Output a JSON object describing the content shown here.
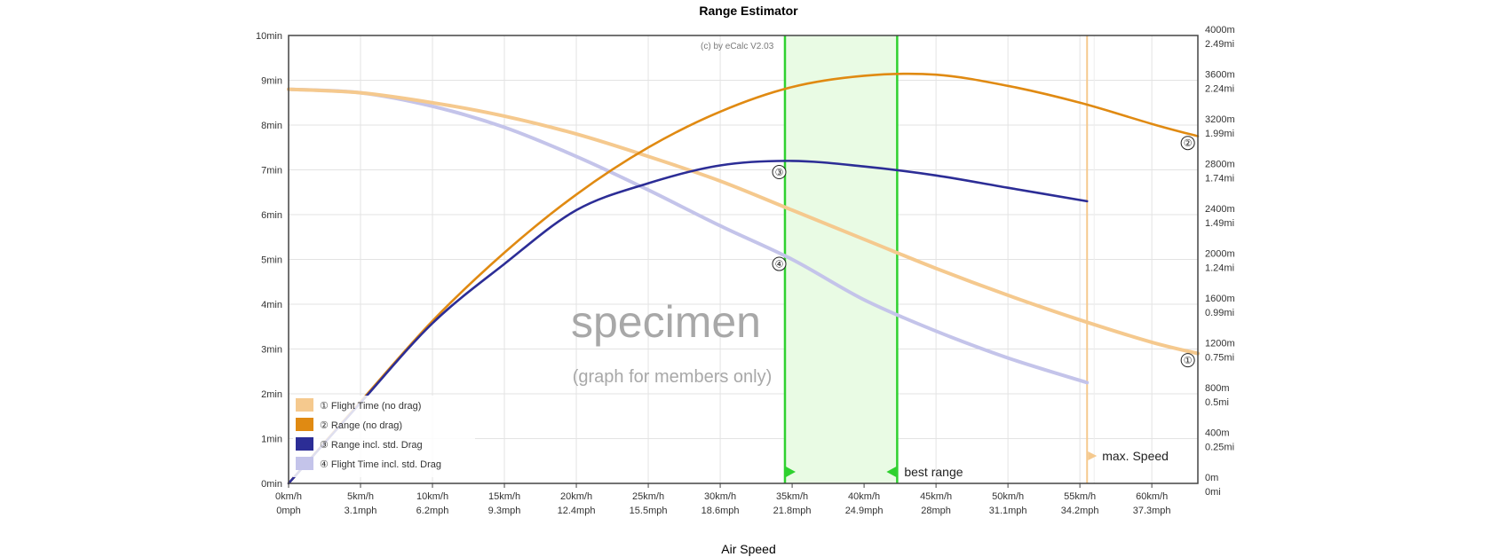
{
  "chart_data": {
    "type": "line",
    "title": "Range Estimator",
    "xlabel": "Air Speed",
    "copyright": "(c) by eCalc  V2.03",
    "watermark_main": "specimen",
    "watermark_sub": "(graph for members only)",
    "x_ticks": [
      {
        "v": 0,
        "kmh": "0km/h",
        "mph": "0mph"
      },
      {
        "v": 5,
        "kmh": "5km/h",
        "mph": "3.1mph"
      },
      {
        "v": 10,
        "kmh": "10km/h",
        "mph": "6.2mph"
      },
      {
        "v": 15,
        "kmh": "15km/h",
        "mph": "9.3mph"
      },
      {
        "v": 20,
        "kmh": "20km/h",
        "mph": "12.4mph"
      },
      {
        "v": 25,
        "kmh": "25km/h",
        "mph": "15.5mph"
      },
      {
        "v": 30,
        "kmh": "30km/h",
        "mph": "18.6mph"
      },
      {
        "v": 35,
        "kmh": "35km/h",
        "mph": "21.8mph"
      },
      {
        "v": 40,
        "kmh": "40km/h",
        "mph": "24.9mph"
      },
      {
        "v": 45,
        "kmh": "45km/h",
        "mph": "28mph"
      },
      {
        "v": 50,
        "kmh": "50km/h",
        "mph": "31.1mph"
      },
      {
        "v": 55,
        "kmh": "55km/h",
        "mph": "34.2mph"
      },
      {
        "v": 60,
        "kmh": "60km/h",
        "mph": "37.3mph"
      }
    ],
    "xlim": [
      0,
      63.2
    ],
    "y_left": {
      "unit": "min",
      "lim": [
        0,
        10
      ],
      "ticks": [
        "0min",
        "1min",
        "2min",
        "3min",
        "4min",
        "5min",
        "6min",
        "7min",
        "8min",
        "9min",
        "10min"
      ]
    },
    "y_right": {
      "unit": "m",
      "lim": [
        0,
        4000
      ],
      "ticks": [
        {
          "v": 0,
          "m": "0m",
          "mi": "0mi"
        },
        {
          "v": 400,
          "m": "400m",
          "mi": "0.25mi"
        },
        {
          "v": 800,
          "m": "800m",
          "mi": "0.5mi"
        },
        {
          "v": 1200,
          "m": "1200m",
          "mi": "0.75mi"
        },
        {
          "v": 1600,
          "m": "1600m",
          "mi": "0.99mi"
        },
        {
          "v": 2000,
          "m": "2000m",
          "mi": "1.24mi"
        },
        {
          "v": 2400,
          "m": "2400m",
          "mi": "1.49mi"
        },
        {
          "v": 2800,
          "m": "2800m",
          "mi": "1.74mi"
        },
        {
          "v": 3200,
          "m": "3200m",
          "mi": "1.99mi"
        },
        {
          "v": 3600,
          "m": "3600m",
          "mi": "2.24mi"
        },
        {
          "v": 4000,
          "m": "4000m",
          "mi": "2.49mi"
        }
      ]
    },
    "series": [
      {
        "name": "Flight Time (no drag)",
        "marker": "①",
        "axis": "left",
        "color": "#f5c98e",
        "x": [
          0,
          5,
          10,
          15,
          20,
          25,
          30,
          35,
          40,
          45,
          50,
          55,
          60,
          63.2
        ],
        "y": [
          8.8,
          8.72,
          8.5,
          8.2,
          7.8,
          7.3,
          6.75,
          6.1,
          5.45,
          4.8,
          4.2,
          3.65,
          3.15,
          2.9
        ]
      },
      {
        "name": "Range (no drag)",
        "marker": "②",
        "axis": "right",
        "color": "#e08a12",
        "x": [
          0,
          5,
          10,
          15,
          20,
          25,
          30,
          35,
          40,
          45,
          50,
          55,
          60,
          63.2
        ],
        "y": [
          0,
          730,
          1450,
          2060,
          2580,
          3000,
          3320,
          3540,
          3640,
          3650,
          3550,
          3400,
          3210,
          3100
        ]
      },
      {
        "name": "Range incl. std. Drag",
        "marker": "③",
        "axis": "right",
        "color": "#2c2d96",
        "x": [
          0,
          5,
          10,
          15,
          20,
          25,
          30,
          35,
          40,
          45,
          50,
          55.5
        ],
        "y": [
          0,
          720,
          1430,
          1960,
          2440,
          2680,
          2840,
          2880,
          2830,
          2750,
          2640,
          2520
        ]
      },
      {
        "name": "Flight Time incl. std. Drag",
        "marker": "④",
        "axis": "left",
        "color": "#c4c4ea",
        "x": [
          0,
          5,
          10,
          15,
          20,
          25,
          30,
          35,
          40,
          45,
          50,
          55.5
        ],
        "y": [
          8.8,
          8.72,
          8.42,
          7.95,
          7.3,
          6.55,
          5.75,
          5.0,
          4.1,
          3.4,
          2.8,
          2.25
        ]
      }
    ],
    "marker_points": [
      {
        "marker": "①",
        "x": 62.5,
        "axis": "left",
        "y": 2.75
      },
      {
        "marker": "②",
        "x": 62.5,
        "axis": "right",
        "y": 3040
      },
      {
        "marker": "③",
        "x": 34.1,
        "axis": "right",
        "y": 2780
      },
      {
        "marker": "④",
        "x": 34.1,
        "axis": "left",
        "y": 4.9
      }
    ],
    "best_range": {
      "label": "best range",
      "from": 34.5,
      "to": 42.3,
      "color": "#2fd12f",
      "fill": "#e9fbe4"
    },
    "max_speed": {
      "label": "max. Speed",
      "x": 55.5,
      "color": "#f5c98e"
    },
    "grid": true,
    "legend_position": "bottom-left"
  }
}
